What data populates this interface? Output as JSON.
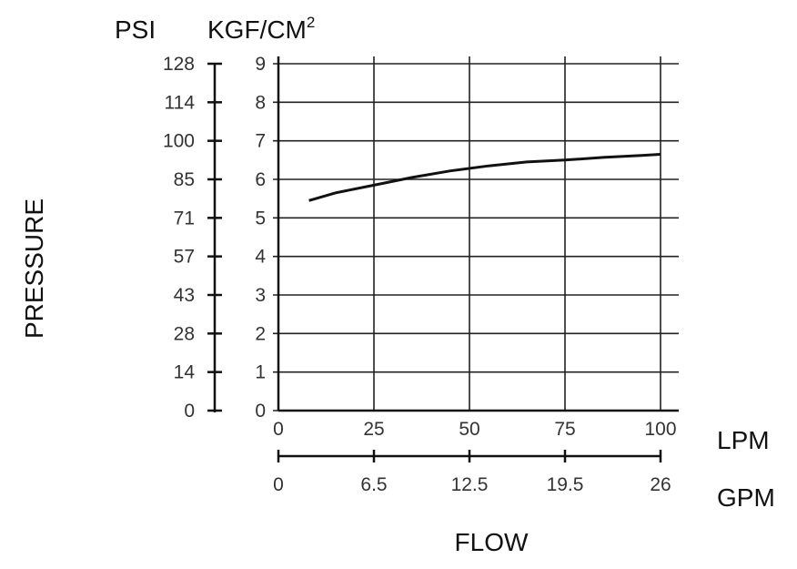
{
  "chart_data": {
    "type": "line",
    "y_axes": {
      "left_unit": "PSI",
      "right_unit_base": "KGF/CM",
      "right_unit_sup": "2",
      "left_ticks": [
        "128",
        "114",
        "100",
        "85",
        "71",
        "57",
        "43",
        "28",
        "14",
        "0"
      ],
      "right_ticks": [
        "9",
        "8",
        "7",
        "6",
        "5",
        "4",
        "3",
        "2",
        "1",
        "0"
      ],
      "title": "PRESSURE",
      "ylim": [
        0,
        9
      ]
    },
    "x_axes": {
      "top_unit": "LPM",
      "bottom_unit": "GPM",
      "top_ticks": [
        "0",
        "25",
        "50",
        "75",
        "100"
      ],
      "bottom_ticks": [
        "0",
        "6.5",
        "12.5",
        "19.5",
        "26"
      ],
      "title": "FLOW",
      "xlim": [
        0,
        100
      ]
    },
    "grid": true,
    "series": [
      {
        "x": [
          8,
          15,
          25,
          35,
          45,
          55,
          65,
          75,
          85,
          95,
          100
        ],
        "y": [
          5.45,
          5.65,
          5.85,
          6.05,
          6.22,
          6.35,
          6.45,
          6.5,
          6.57,
          6.62,
          6.65
        ]
      }
    ]
  }
}
